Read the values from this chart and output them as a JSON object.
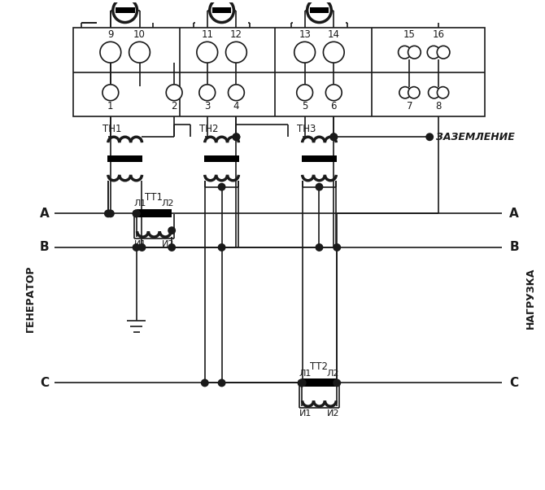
{
  "figsize": [
    6.7,
    6.02
  ],
  "dpi": 100,
  "bg": "#ffffff",
  "lc": "#1a1a1a",
  "lw": 1.2,
  "lwt": 2.5,
  "labels": {
    "TH1": "ТН1",
    "TH2": "ТН2",
    "TH3": "ТН3",
    "TT1": "ТТ1",
    "TT2": "ТТ2",
    "L1": "Л1",
    "L2": "Л2",
    "I1": "И1",
    "I2": "И2",
    "A": "A",
    "B": "B",
    "C": "C",
    "GEN": "ГЕНЕРАТОР",
    "LOAD": "НАГРУЗКА",
    "GND": "ЗАЗЕМЛЕНИЕ"
  }
}
